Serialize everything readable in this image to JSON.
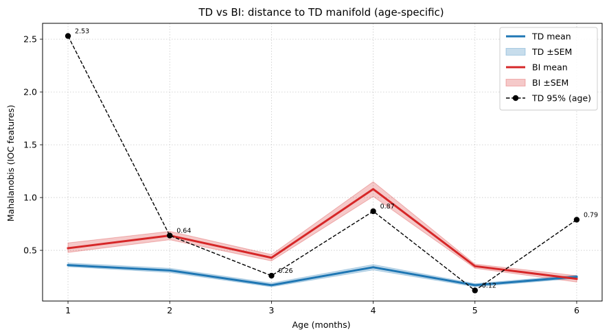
{
  "chart_data": {
    "type": "line",
    "title": "TD vs BI: distance to TD manifold (age-specific)",
    "xlabel": "Age (months)",
    "ylabel": "Mahalanobis (IOC features)",
    "x": [
      1,
      2,
      3,
      4,
      5,
      6
    ],
    "xlim": [
      0.75,
      6.25
    ],
    "ylim": [
      0.02,
      2.65
    ],
    "xticks": [
      "1",
      "2",
      "3",
      "4",
      "5",
      "6"
    ],
    "yticks": [
      "0.5",
      "1.0",
      "1.5",
      "2.0",
      "2.5"
    ],
    "grid": true,
    "legend_position": "top-right",
    "series": [
      {
        "name": "TD mean",
        "style": "line",
        "color": "#1f77b4",
        "values": [
          0.36,
          0.31,
          0.17,
          0.34,
          0.17,
          0.25
        ]
      },
      {
        "name": "TD ±SEM",
        "style": "band",
        "color": "#1f77b4",
        "lower": [
          0.345,
          0.29,
          0.155,
          0.315,
          0.155,
          0.235
        ],
        "upper": [
          0.38,
          0.33,
          0.19,
          0.365,
          0.185,
          0.265
        ]
      },
      {
        "name": "BI mean",
        "style": "line",
        "color": "#d62728",
        "values": [
          0.52,
          0.64,
          0.43,
          1.08,
          0.35,
          0.23
        ]
      },
      {
        "name": "BI ±SEM",
        "style": "band",
        "color": "#d62728",
        "lower": [
          0.48,
          0.6,
          0.4,
          1.01,
          0.33,
          0.2
        ],
        "upper": [
          0.57,
          0.68,
          0.46,
          1.15,
          0.37,
          0.26
        ]
      },
      {
        "name": "TD 95% (age)",
        "style": "dashed-markers",
        "color": "#000000",
        "values": [
          2.53,
          0.64,
          0.26,
          0.87,
          0.12,
          0.79
        ],
        "labels": [
          "2.53",
          "0.64",
          "0.26",
          "0.87",
          "0.12",
          "0.79"
        ]
      }
    ]
  }
}
